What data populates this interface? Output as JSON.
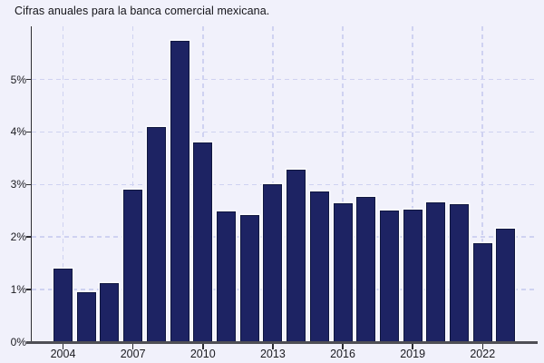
{
  "title": "Cifras anuales para la banca comercial mexicana.",
  "colors": {
    "background": "#f1f1fb",
    "bar": "#1d2363",
    "bar_border": "#10173f",
    "bar_halo": "#fafaff",
    "grid": "#cfd2f1",
    "axis": "#2e2e33",
    "baseline": "#4f4f55",
    "text": "#1b1b20"
  },
  "chart_data": {
    "type": "bar",
    "title": "Cifras anuales para la banca comercial mexicana.",
    "xlabel": "",
    "ylabel": "",
    "y_unit": "%",
    "categories": [
      2004,
      2005,
      2006,
      2007,
      2008,
      2009,
      2010,
      2011,
      2012,
      2013,
      2014,
      2015,
      2016,
      2017,
      2018,
      2019,
      2020,
      2021,
      2022,
      2023
    ],
    "values": [
      1.4,
      0.95,
      1.13,
      2.9,
      4.1,
      5.73,
      3.8,
      2.48,
      2.41,
      3.01,
      3.28,
      2.86,
      2.65,
      2.76,
      2.5,
      2.53,
      2.66,
      2.62,
      1.88,
      2.16
    ],
    "ylim": [
      0,
      6
    ],
    "yticks": [
      {
        "value": 0,
        "label": "0%"
      },
      {
        "value": 1,
        "label": "1%"
      },
      {
        "value": 2,
        "label": "2%"
      },
      {
        "value": 3,
        "label": "3%"
      },
      {
        "value": 4,
        "label": "4%"
      },
      {
        "value": 5,
        "label": "5%"
      }
    ],
    "xticks": [
      {
        "value": 2004,
        "label": "2004"
      },
      {
        "value": 2007,
        "label": "2007"
      },
      {
        "value": 2010,
        "label": "2010"
      },
      {
        "value": 2013,
        "label": "2013"
      },
      {
        "value": 2016,
        "label": "2016"
      },
      {
        "value": 2019,
        "label": "2019"
      },
      {
        "value": 2022,
        "label": "2022"
      }
    ],
    "grid": {
      "horizontal": "dashed",
      "vertical": "dashed"
    },
    "legend_position": "none",
    "bar_color": "#1d2363"
  }
}
